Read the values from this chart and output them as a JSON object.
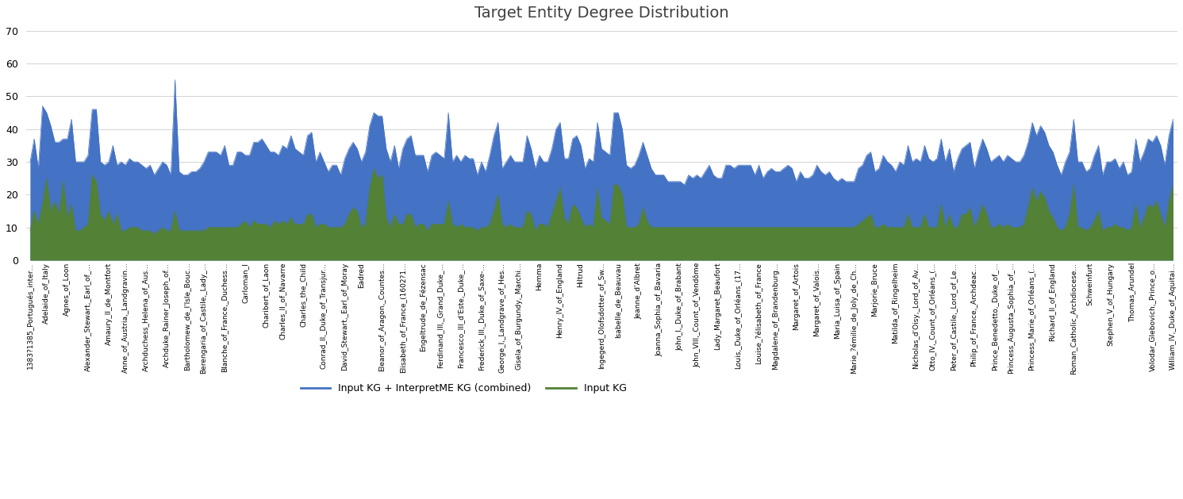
{
  "title": "Target Entity Degree Distribution",
  "legend_combined": "Input KG + InterpretME KG (combined)",
  "legend_input": "Input KG",
  "ylim": [
    0,
    70
  ],
  "yticks": [
    0,
    10,
    20,
    30,
    40,
    50,
    60,
    70
  ],
  "color_combined": "#4472C4",
  "color_input": "#538135",
  "tick_labels": [
    "1383?1385_Portugués_inter...",
    "Adelaide_of_Italy",
    "Agnes_of_Loon",
    "Alexander_Stewart,_Earl_of_...",
    "Amaury_II_de_Montfort",
    "Anne_of_Austria,_Landgravin...",
    "Archduchess_Helena_of_Aus...",
    "Archduke_Rainer_Joseph_of...",
    "Bartholomew_de_l'Isle_Bouc...",
    "Berengaria_of_Castile,_Lady_...",
    "Blanche_of_France,_Duchess...",
    "Carloman_I",
    "Charibert_of_Laon",
    "Charles_II_of_Navarre",
    "Charles_the_Child",
    "Conrad_II,_Duke_of_Transjur...",
    "David_Stewart,_Earl_of_Moray",
    "Eadred",
    "Eleanor_of_Aragon,_Countes...",
    "Elisabeth_of_France_(1602?1...",
    "Engeltrude_de_Fézensac",
    "Ferdinand_III,_Grand_Duke_...",
    "Francesco_III_d'Este,_Duke_...",
    "Frederick_III,_Duke_of_Saxe-...",
    "George_I,_Landgrave_of_Hes...",
    "Gisela_of_Burgundy,_Marchi...",
    "Hemma",
    "Henry_IV_of_England",
    "Hiltrud",
    "Ingegerd_Olofsdotter_of_Sw...",
    "Isabelle_de_Beauvau",
    "Jeanne_d'Albret",
    "Joanna_Sophia_of_Bavaria",
    "John_I,_Duke_of_Brabant",
    "John_VIII,_Count_of_Vendôme",
    "Lady_Margaret_Beaufort",
    "Louis,_Duke_of_Orléans_(17...",
    "Louise_?élisabeth_of_France",
    "Magdalene_of_Brandenburg...",
    "Margaret_of_Artois",
    "Margaret_of_Valois...",
    "Maria_Luisa_of_Spain",
    "Marie_?émilie_de_Joly_de_Ch...",
    "Marjorie_Bruce",
    "Matilda_of_Ringelheim",
    "Nicholas_d'Oisy,_Lord_of_Av...",
    "Otto_IV,_Count_of_Orléans_(...",
    "Peter_of_Castile,_Lord_of_Le...",
    "Philip_of_France,_Archdeac...",
    "Prince_Benedetto,_Duke_of_...",
    "Princess_Augusta_Sophia_of_...",
    "Princess_Marie_of_Orléans_(...",
    "Richard_II_of_England",
    "Roman_Catholic_Archdiocese...",
    "Schweinfurt",
    "Stephen_V_of_Hungary",
    "Thomas_Arundel",
    "Volodar_Glebovich,_Prince_o...",
    "William_IV,_Duke_of_Aquitai..."
  ],
  "combined_values": [
    30,
    37,
    28,
    47,
    45,
    41,
    36,
    36,
    37,
    37,
    43,
    30,
    30,
    30,
    32,
    46,
    46,
    30,
    29,
    30,
    35,
    29,
    30,
    29,
    31,
    30,
    30,
    29,
    28,
    29,
    26,
    28,
    30,
    29,
    26,
    55,
    27,
    26,
    26,
    27,
    27,
    28,
    30,
    33,
    33,
    33,
    32,
    35,
    29,
    29,
    33,
    33,
    32,
    32,
    36,
    36,
    37,
    35,
    33,
    33,
    32,
    35,
    34,
    38,
    34,
    33,
    32,
    38,
    39,
    30,
    33,
    30,
    27,
    29,
    29,
    26,
    31,
    34,
    36,
    34,
    30,
    33,
    41,
    45,
    44,
    44,
    34,
    30,
    35,
    28,
    34,
    37,
    38,
    32,
    32,
    32,
    27,
    32,
    33,
    32,
    31,
    45,
    30,
    32,
    30,
    32,
    31,
    31,
    26,
    30,
    27,
    32,
    38,
    42,
    28,
    30,
    32,
    30,
    30,
    30,
    38,
    34,
    28,
    32,
    30,
    30,
    34,
    40,
    42,
    31,
    31,
    37,
    38,
    35,
    28,
    31,
    30,
    42,
    34,
    33,
    32,
    45,
    45,
    40,
    29,
    28,
    29,
    32,
    36,
    32,
    28,
    26,
    26,
    26,
    24,
    24,
    24,
    24,
    23,
    26,
    25,
    26,
    25,
    27,
    29,
    26,
    25,
    25,
    29,
    29,
    28,
    29,
    29,
    29,
    29,
    26,
    29,
    25,
    27,
    28,
    27,
    27,
    28,
    29,
    28,
    24,
    27,
    25,
    25,
    26,
    29,
    27,
    26,
    27,
    25,
    24,
    25,
    24,
    24,
    24,
    28,
    29,
    32,
    33,
    27,
    28,
    32,
    30,
    29,
    27,
    30,
    29,
    35,
    30,
    31,
    30,
    35,
    31,
    30,
    31,
    37,
    30,
    34,
    27,
    31,
    34,
    35,
    36,
    28,
    33,
    37,
    34,
    30,
    31,
    32,
    30,
    32,
    31,
    30,
    30,
    32,
    36,
    42,
    38,
    41,
    39,
    35,
    33,
    29,
    26,
    30,
    33,
    43,
    30,
    30,
    27,
    28,
    32,
    35,
    26,
    30,
    30,
    31,
    28,
    30,
    26,
    27,
    37,
    30,
    33,
    37,
    36,
    38,
    35,
    29,
    38,
    43
  ],
  "input_values": [
    9,
    15,
    11,
    17,
    25,
    15,
    18,
    14,
    24,
    13,
    17,
    9,
    9,
    10,
    11,
    26,
    24,
    14,
    12,
    15,
    11,
    14,
    9,
    9,
    10,
    10,
    10,
    9,
    9,
    9,
    8,
    9,
    10,
    9,
    9,
    15,
    9,
    9,
    9,
    9,
    9,
    9,
    9,
    10,
    10,
    10,
    10,
    10,
    10,
    10,
    10,
    11,
    12,
    10,
    12,
    11,
    11,
    11,
    10,
    12,
    11,
    12,
    11,
    13,
    11,
    11,
    11,
    14,
    14,
    10,
    11,
    11,
    10,
    10,
    10,
    10,
    11,
    14,
    16,
    15,
    10,
    11,
    22,
    28,
    25,
    26,
    13,
    10,
    14,
    11,
    11,
    14,
    14,
    10,
    11,
    11,
    9,
    11,
    11,
    11,
    11,
    18,
    11,
    10,
    11,
    10,
    10,
    10,
    9,
    10,
    10,
    11,
    15,
    20,
    11,
    10,
    11,
    10,
    10,
    10,
    15,
    14,
    9,
    11,
    11,
    10,
    14,
    18,
    22,
    13,
    11,
    17,
    16,
    13,
    10,
    11,
    10,
    22,
    13,
    12,
    11,
    23,
    23,
    20,
    10,
    10,
    10,
    11,
    16,
    12,
    10,
    10,
    10,
    10,
    10,
    10,
    10,
    10,
    10,
    10,
    10,
    10,
    10,
    10,
    10,
    10,
    10,
    10,
    10,
    10,
    10,
    10,
    10,
    10,
    10,
    10,
    10,
    10,
    10,
    10,
    10,
    10,
    10,
    10,
    10,
    10,
    10,
    10,
    10,
    10,
    10,
    10,
    10,
    10,
    10,
    10,
    10,
    10,
    10,
    10,
    11,
    12,
    13,
    14,
    10,
    10,
    11,
    10,
    10,
    10,
    10,
    10,
    14,
    10,
    10,
    10,
    14,
    10,
    10,
    10,
    17,
    10,
    14,
    10,
    10,
    14,
    14,
    16,
    10,
    13,
    17,
    14,
    10,
    10,
    11,
    10,
    11,
    10,
    10,
    10,
    11,
    16,
    22,
    18,
    21,
    19,
    15,
    13,
    10,
    9,
    10,
    14,
    23,
    10,
    10,
    9,
    10,
    12,
    15,
    9,
    10,
    10,
    11,
    10,
    10,
    9,
    10,
    17,
    10,
    13,
    17,
    16,
    18,
    14,
    10,
    18,
    23
  ]
}
